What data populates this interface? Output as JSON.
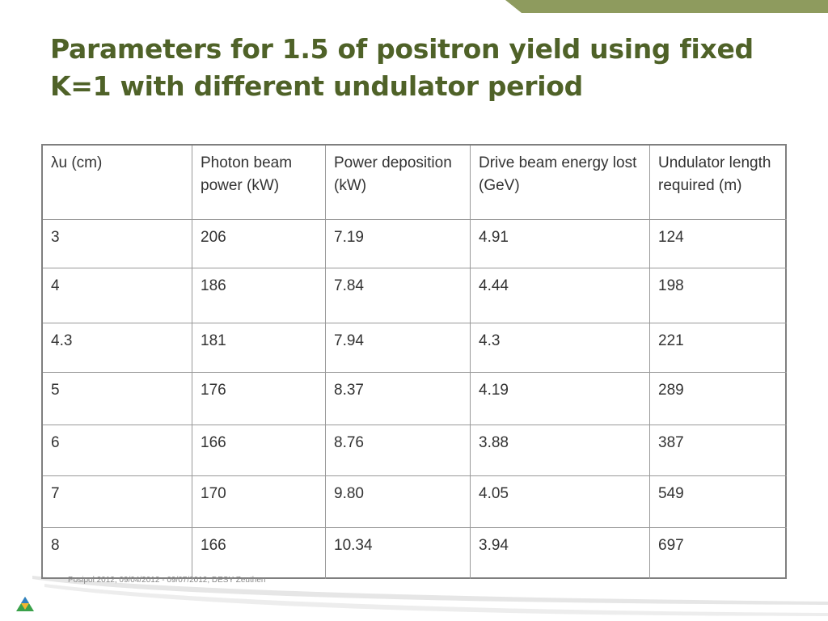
{
  "header": {
    "title_lines": [
      "Parameters for 1.5 of positron yield using fixed",
      "K=1 with different undulator period"
    ]
  },
  "table": {
    "columns": [
      "λu (cm)",
      "Photon beam power (kW)",
      "Power deposition (kW)",
      "Drive beam energy lost (GeV)",
      "Undulator length required (m)"
    ],
    "rows": [
      [
        "3",
        "206",
        "7.19",
        "4.91",
        "124"
      ],
      [
        "4",
        "186",
        "7.84",
        "4.44",
        "198"
      ],
      [
        "4.3",
        "181",
        "7.94",
        "4.3",
        "221"
      ],
      [
        "5",
        "176",
        "8.37",
        "4.19",
        "289"
      ],
      [
        "6",
        "166",
        "8.76",
        "3.88",
        "387"
      ],
      [
        "7",
        "170",
        "9.80",
        "4.05",
        "549"
      ],
      [
        "8",
        "166",
        "10.34",
        "3.94",
        "697"
      ]
    ]
  },
  "footer": {
    "text": "Posipol 2012, 09/04/2012 - 09/07/2012, DESY Zeuthen"
  }
}
